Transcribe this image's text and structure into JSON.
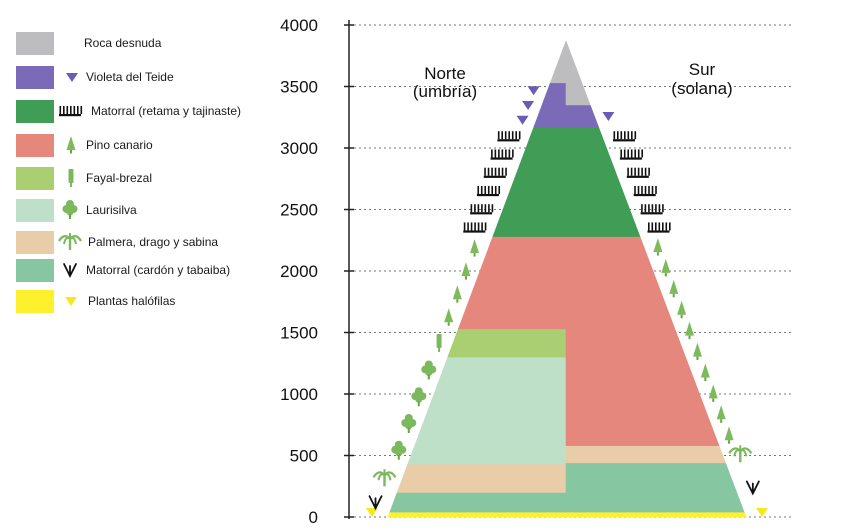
{
  "legend": [
    {
      "label": "Roca desnuda",
      "color": "#bdbdbf",
      "icon": "none"
    },
    {
      "label": "Violeta del Teide",
      "color": "#7a6ab8",
      "icon": "violet-triangle-icon"
    },
    {
      "label": "Matorral (retama y tajinaste)",
      "color": "#3f9d55",
      "icon": "comb-icon"
    },
    {
      "label": "Pino canario",
      "color": "#e5877c",
      "icon": "pine-icon"
    },
    {
      "label": "Fayal-brezal",
      "color": "#a9cf72",
      "icon": "fayal-icon"
    },
    {
      "label": "Laurisilva",
      "color": "#bfe0c8",
      "icon": "laurel-tree-icon"
    },
    {
      "label": "Palmera, drago y sabina",
      "color": "#e9cda9",
      "icon": "palm-icon"
    },
    {
      "label": "Matorral (cardón y tabaiba)",
      "color": "#86c7a1",
      "icon": "fork-icon"
    },
    {
      "label": "Plantas halófilas",
      "color": "#fff02d",
      "icon": "yellow-triangle-icon"
    }
  ],
  "y_axis": {
    "ticks": [
      "4000",
      "3500",
      "3000",
      "2500",
      "2000",
      "1500",
      "1000",
      "500",
      "0"
    ]
  },
  "sides": {
    "north": {
      "line1": "Norte",
      "line2": "(umbría)"
    },
    "south": {
      "line1": "Sur",
      "line2": "(solana)"
    }
  },
  "zones": {
    "north": [
      {
        "zone": "Plantas halófilas",
        "from": 0,
        "to": 40
      },
      {
        "zone": "Matorral (cardón y tabaiba)",
        "from": 40,
        "to": 200
      },
      {
        "zone": "Palmera, drago y sabina",
        "from": 200,
        "to": 430
      },
      {
        "zone": "Laurisilva",
        "from": 430,
        "to": 1300
      },
      {
        "zone": "Fayal-brezal",
        "from": 1300,
        "to": 1530
      },
      {
        "zone": "Pino canario",
        "from": 1530,
        "to": 2280
      },
      {
        "zone": "Matorral (retama y tajinaste)",
        "from": 2280,
        "to": 3170
      },
      {
        "zone": "Violeta del Teide",
        "from": 3170,
        "to": 3530
      },
      {
        "zone": "Roca desnuda",
        "from": 3530,
        "to": 3870
      }
    ],
    "south": [
      {
        "zone": "Plantas halófilas",
        "from": 0,
        "to": 40
      },
      {
        "zone": "Matorral (cardón y tabaiba)",
        "from": 40,
        "to": 440
      },
      {
        "zone": "Palmera, drago y sabina",
        "from": 440,
        "to": 580
      },
      {
        "zone": "Pino canario",
        "from": 580,
        "to": 2280
      },
      {
        "zone": "Matorral (retama y tajinaste)",
        "from": 2280,
        "to": 3170
      },
      {
        "zone": "Violeta del Teide",
        "from": 3170,
        "to": 3350
      },
      {
        "zone": "Roca desnuda",
        "from": 3350,
        "to": 3870
      }
    ]
  }
}
